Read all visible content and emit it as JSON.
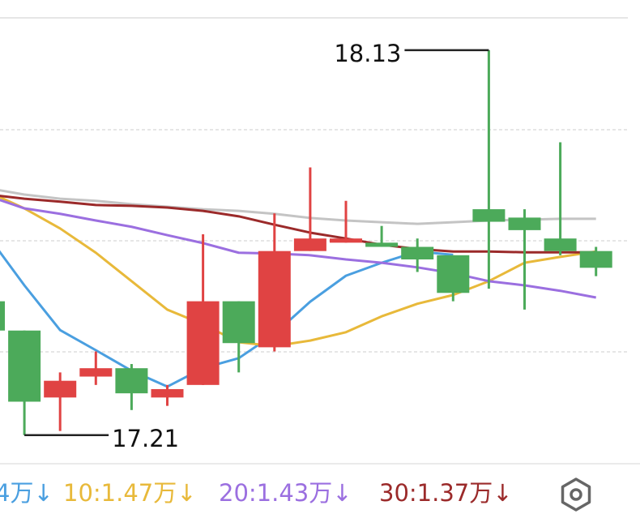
{
  "chart_data": {
    "type": "candlestick",
    "ylim": [
      17.165,
      18.25
    ],
    "up_color": "#e04343",
    "down_color": "#4caa5a",
    "candles": [
      {
        "open": 17.53,
        "high": 17.53,
        "low": 17.46,
        "close": 17.46
      },
      {
        "open": 17.46,
        "high": 17.46,
        "low": 17.21,
        "close": 17.29
      },
      {
        "open": 17.3,
        "high": 17.36,
        "low": 17.22,
        "close": 17.34
      },
      {
        "open": 17.35,
        "high": 17.41,
        "low": 17.33,
        "close": 17.37
      },
      {
        "open": 17.37,
        "high": 17.38,
        "low": 17.27,
        "close": 17.31
      },
      {
        "open": 17.3,
        "high": 17.33,
        "low": 17.28,
        "close": 17.32
      },
      {
        "open": 17.33,
        "high": 17.69,
        "low": 17.33,
        "close": 17.53
      },
      {
        "open": 17.53,
        "high": 17.53,
        "low": 17.36,
        "close": 17.43
      },
      {
        "open": 17.42,
        "high": 17.74,
        "low": 17.41,
        "close": 17.65
      },
      {
        "open": 17.65,
        "high": 17.85,
        "low": 17.65,
        "close": 17.68
      },
      {
        "open": 17.67,
        "high": 17.77,
        "low": 17.67,
        "close": 17.68
      },
      {
        "open": 17.67,
        "high": 17.71,
        "low": 17.66,
        "close": 17.66
      },
      {
        "open": 17.66,
        "high": 17.68,
        "low": 17.6,
        "close": 17.63
      },
      {
        "open": 17.64,
        "high": 17.64,
        "low": 17.53,
        "close": 17.55
      },
      {
        "open": 17.75,
        "high": 18.13,
        "low": 17.56,
        "close": 17.72
      },
      {
        "open": 17.73,
        "high": 17.75,
        "low": 17.51,
        "close": 17.7
      },
      {
        "open": 17.68,
        "high": 17.91,
        "low": 17.64,
        "close": 17.65
      },
      {
        "open": 17.65,
        "high": 17.66,
        "low": 17.59,
        "close": 17.61
      }
    ],
    "lines": [
      {
        "color": "#c4c4c4",
        "values": [
          17.8,
          17.785,
          17.775,
          17.77,
          17.762,
          17.756,
          17.75,
          17.746,
          17.739,
          17.729,
          17.723,
          17.719,
          17.715,
          17.719,
          17.723,
          17.725,
          17.727,
          17.727
        ]
      },
      {
        "color": "#4a9fe0",
        "values": [
          17.684,
          17.568,
          17.461,
          17.413,
          17.364,
          17.326,
          17.37,
          17.394,
          17.452,
          17.529,
          17.591,
          17.622,
          17.649,
          17.641,
          null,
          null,
          null,
          null
        ]
      },
      {
        "color": "#e8b93a",
        "values": [
          17.791,
          17.752,
          17.704,
          17.646,
          17.578,
          17.51,
          17.475,
          17.432,
          17.423,
          17.436,
          17.456,
          17.494,
          17.524,
          17.545,
          17.578,
          17.622,
          17.636,
          17.649
        ]
      },
      {
        "color": "#9b6fe0",
        "values": [
          17.781,
          17.752,
          17.739,
          17.723,
          17.708,
          17.688,
          17.669,
          17.646,
          17.644,
          17.64,
          17.63,
          17.622,
          17.611,
          17.597,
          17.578,
          17.568,
          17.555,
          17.539
        ]
      },
      {
        "color": "#9b2a2a",
        "values": [
          17.785,
          17.775,
          17.768,
          17.76,
          17.758,
          17.754,
          17.746,
          17.733,
          17.713,
          17.694,
          17.68,
          17.665,
          17.655,
          17.649,
          17.649,
          17.647,
          17.647,
          17.647
        ]
      }
    ],
    "annotations": {
      "high": "18.13",
      "low": "17.21"
    },
    "legend": [
      {
        "text": "4万↓",
        "color": "#4a9fe0"
      },
      {
        "text": "10:1.47万↓",
        "color": "#e8b93a"
      },
      {
        "text": "20:1.43万↓",
        "color": "#9b6fe0"
      },
      {
        "text": "30:1.37万↓",
        "color": "#9b2a2a"
      }
    ]
  }
}
